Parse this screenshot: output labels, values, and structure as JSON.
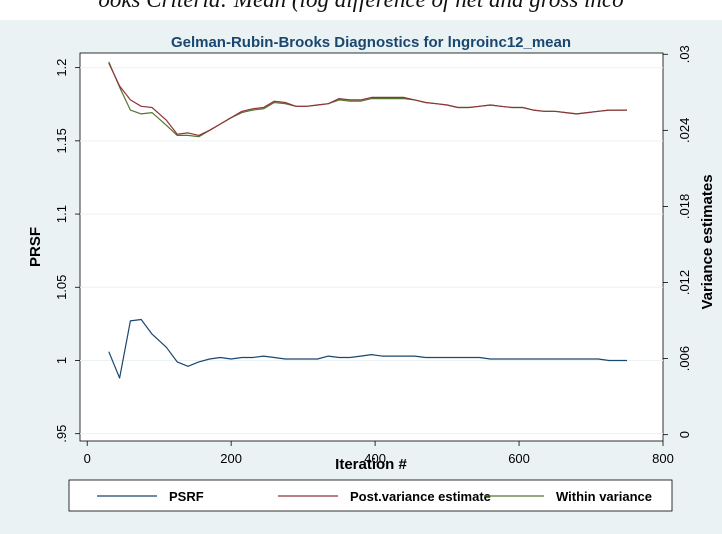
{
  "caption": "ooks Criteria: Mean (log difference of net and gross inco",
  "colors": {
    "background": "#EAF2F3",
    "plot_area": "#FFFFFF",
    "psrf": "#1A476F",
    "post_variance": "#90353B",
    "within_variance": "#55752F",
    "title": "#1A476F"
  },
  "chart_data": {
    "type": "line",
    "title": "Gelman-Rubin-Brooks Diagnostics for lngroinc12_mean",
    "xlabel": "Iteration #",
    "ylabel_left": "PRSF",
    "ylabel_right": "Variance estimates",
    "xlim": [
      -10,
      800
    ],
    "ylim_left": [
      0.945,
      1.21
    ],
    "ylim_right": [
      -0.0005,
      0.0301
    ],
    "x_ticks": [
      0,
      200,
      400,
      600,
      800
    ],
    "y_ticks_left": [
      0.95,
      1,
      1.05,
      1.1,
      1.15,
      1.2
    ],
    "y_tick_labels_left": [
      ".95",
      "1",
      "1.05",
      "1.1",
      "1.15",
      "1.2"
    ],
    "y_ticks_right": [
      0,
      0.006,
      0.012,
      0.018,
      0.024,
      0.03
    ],
    "y_tick_labels_right": [
      "0",
      ".006",
      ".012",
      ".018",
      ".024",
      ".03"
    ],
    "grid": "horizontal",
    "legend_position": "bottom",
    "x": [
      30,
      45,
      60,
      75,
      90,
      110,
      125,
      140,
      155,
      170,
      185,
      200,
      215,
      230,
      245,
      260,
      275,
      290,
      305,
      320,
      335,
      350,
      365,
      380,
      395,
      410,
      425,
      440,
      455,
      470,
      485,
      500,
      515,
      530,
      545,
      560,
      575,
      590,
      605,
      620,
      635,
      650,
      665,
      680,
      695,
      710,
      725,
      740,
      750
    ],
    "series": [
      {
        "name": "PSRF",
        "axis": "left",
        "values": [
          1.006,
          0.988,
          1.027,
          1.028,
          1.018,
          1.009,
          0.999,
          0.996,
          0.999,
          1.001,
          1.002,
          1.001,
          1.002,
          1.002,
          1.003,
          1.002,
          1.001,
          1.001,
          1.001,
          1.001,
          1.003,
          1.002,
          1.002,
          1.003,
          1.004,
          1.003,
          1.003,
          1.003,
          1.003,
          1.002,
          1.002,
          1.002,
          1.002,
          1.002,
          1.002,
          1.001,
          1.001,
          1.001,
          1.001,
          1.001,
          1.001,
          1.001,
          1.001,
          1.001,
          1.001,
          1.001,
          1.0,
          1.0,
          1.0
        ]
      },
      {
        "name": "Post.variance estimate",
        "axis": "right",
        "values": [
          0.0293,
          0.0275,
          0.0264,
          0.0259,
          0.0258,
          0.0248,
          0.0237,
          0.0238,
          0.0236,
          0.024,
          0.0245,
          0.025,
          0.0255,
          0.0257,
          0.0258,
          0.0263,
          0.0262,
          0.0259,
          0.0259,
          0.026,
          0.0261,
          0.0265,
          0.0264,
          0.0264,
          0.0266,
          0.0266,
          0.0266,
          0.0266,
          0.0264,
          0.0262,
          0.0261,
          0.026,
          0.0258,
          0.0258,
          0.0259,
          0.026,
          0.0259,
          0.0258,
          0.0258,
          0.0256,
          0.0255,
          0.0255,
          0.0254,
          0.0253,
          0.0254,
          0.0255,
          0.0256,
          0.0256,
          0.0256
        ]
      },
      {
        "name": "Within variance",
        "axis": "right",
        "values": [
          0.0294,
          0.0274,
          0.0256,
          0.0253,
          0.0254,
          0.0244,
          0.0236,
          0.0236,
          0.0235,
          0.024,
          0.0245,
          0.025,
          0.0254,
          0.0256,
          0.0257,
          0.0262,
          0.0261,
          0.0259,
          0.0259,
          0.026,
          0.0261,
          0.0264,
          0.0263,
          0.0263,
          0.0265,
          0.0265,
          0.0265,
          0.0265,
          0.0264,
          0.0262,
          0.0261,
          0.026,
          0.0258,
          0.0258,
          0.0259,
          0.026,
          0.0259,
          0.0258,
          0.0258,
          0.0256,
          0.0255,
          0.0255,
          0.0254,
          0.0253,
          0.0254,
          0.0255,
          0.0256,
          0.0256,
          0.0256
        ]
      }
    ],
    "legend": [
      {
        "label": "PSRF",
        "series": "PSRF"
      },
      {
        "label": "Post.variance estimate",
        "series": "Post.variance estimate"
      },
      {
        "label": "Within variance",
        "series": "Within variance"
      }
    ]
  }
}
